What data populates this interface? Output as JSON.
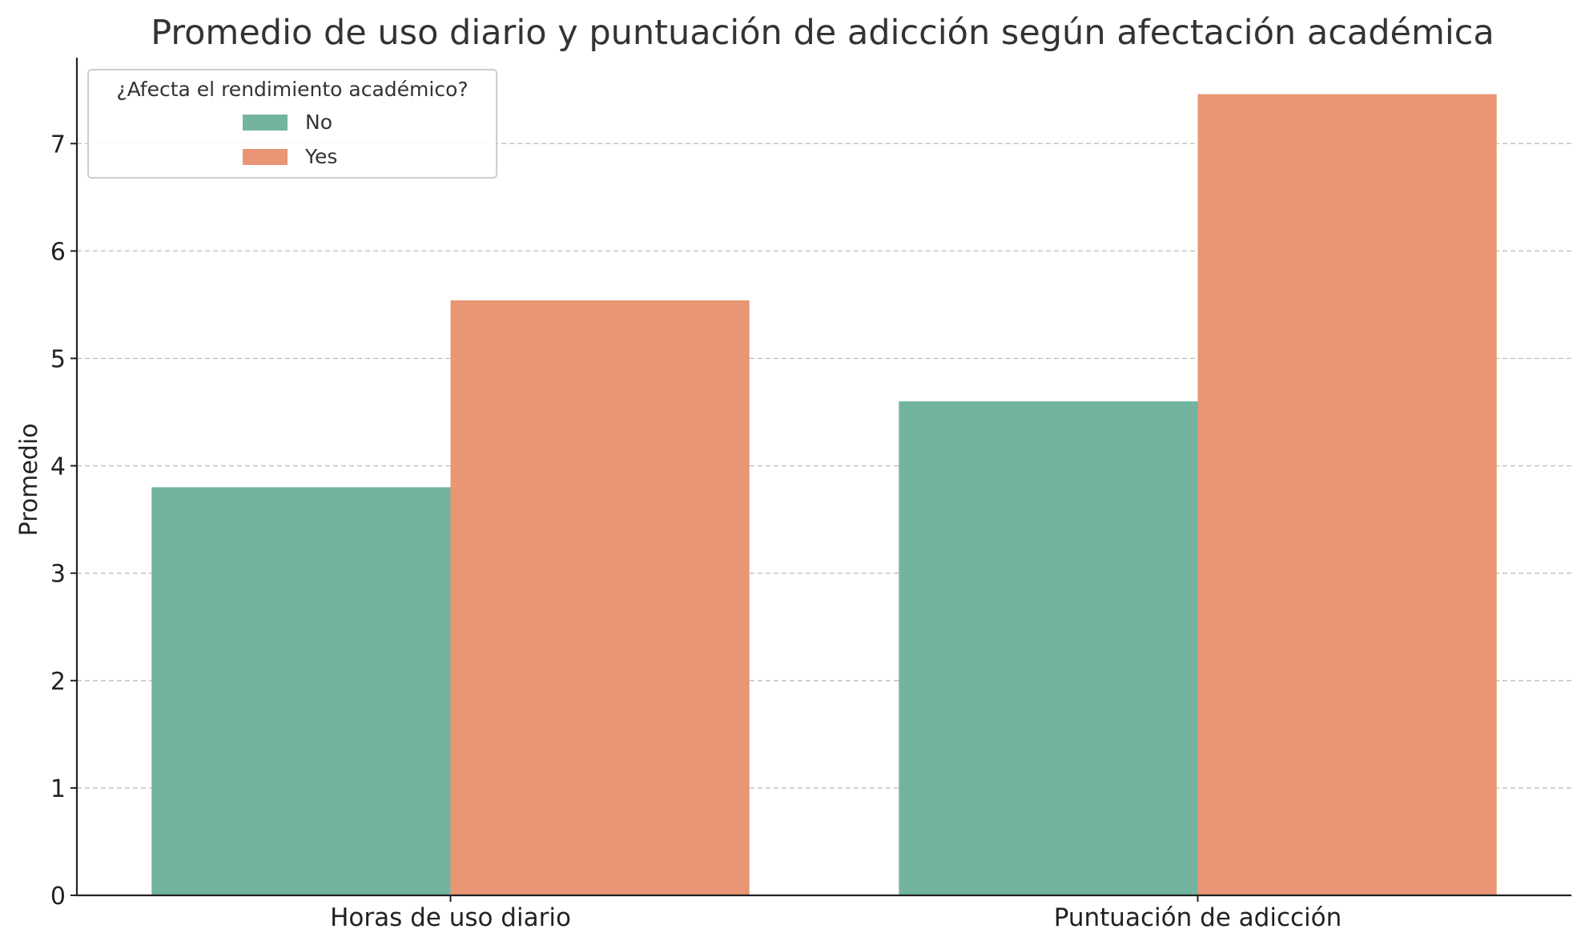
{
  "chart_data": {
    "type": "bar",
    "title": "Promedio de uso diario y puntuación de adicción según afectación académica",
    "xlabel": "",
    "ylabel": "Promedio",
    "categories": [
      "Horas de uso diario",
      "Puntuación de adicción"
    ],
    "series": [
      {
        "name": "No",
        "color": "#73b4a0",
        "values": [
          3.8,
          4.6
        ]
      },
      {
        "name": "Yes",
        "color": "#e89674",
        "values": [
          5.54,
          7.46
        ]
      }
    ],
    "ylim": [
      0,
      7.8
    ],
    "yticks": [
      "0",
      "1",
      "2",
      "3",
      "4",
      "5",
      "6",
      "7"
    ],
    "grid": true,
    "legend": {
      "title": "¿Afecta el rendimiento académico?",
      "position": "top-left"
    }
  }
}
